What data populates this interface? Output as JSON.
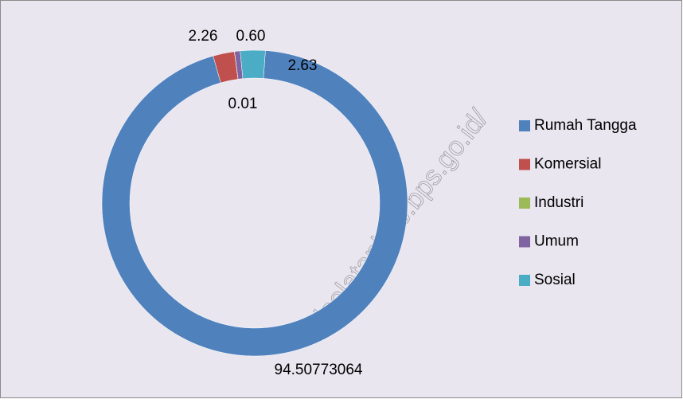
{
  "chart_data": {
    "type": "donut",
    "categories": [
      "Rumah Tangga",
      "Komersial",
      "Industri",
      "Umum",
      "Sosial"
    ],
    "values": [
      94.50773064,
      2.26,
      0.01,
      0.6,
      2.63
    ],
    "value_labels": [
      "94.50773064",
      "2.26",
      "0.01",
      "0.60",
      "2.63"
    ],
    "colors": [
      "#4f81bd",
      "#c0504d",
      "#9bbb59",
      "#8064a2",
      "#4bacc6"
    ],
    "legend": "right",
    "watermark": "ulselatankab.bps.go.id/"
  }
}
